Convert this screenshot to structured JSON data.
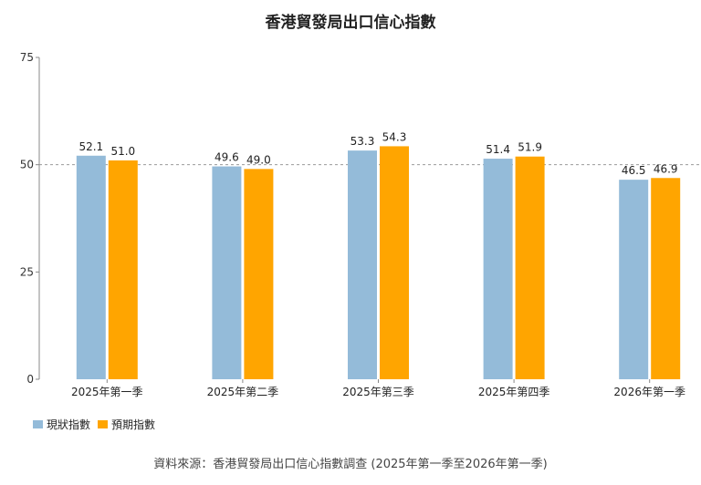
{
  "chart_data": {
    "type": "bar",
    "title": "香港貿發局出口信心指數",
    "categories": [
      "2025年第一季",
      "2025年第二季",
      "2025年第三季",
      "2025年第四季",
      "2026年第一季"
    ],
    "series": [
      {
        "name": "現狀指數",
        "color": "#94bbd9",
        "values": [
          52.1,
          49.6,
          53.3,
          51.4,
          46.5
        ]
      },
      {
        "name": "預期指數",
        "color": "#ffa500",
        "values": [
          51.0,
          49.0,
          54.3,
          51.9,
          46.9
        ]
      }
    ],
    "ylim": [
      0,
      75
    ],
    "yticks": [
      0,
      25,
      50,
      75
    ],
    "reference_line": 50,
    "legend": "bottom-left",
    "xlabel": "",
    "ylabel": ""
  },
  "source": "資料來源：香港貿發局出口信心指數調查 (2025年第一季至2026年第一季)"
}
